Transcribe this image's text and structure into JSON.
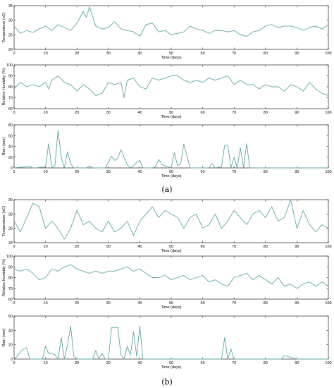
{
  "figure": {
    "series_color": "#5fa5a5",
    "panels": [
      {
        "caption": "(a)",
        "letter": "a"
      },
      {
        "caption": "(b)",
        "letter": "b"
      }
    ]
  },
  "chart_data": [
    {
      "type": "line",
      "panel": "a",
      "xlabel": "Time (days)",
      "ylabel": "Temperature (oC)",
      "xlim": [
        0,
        100
      ],
      "ylim": [
        20,
        35
      ],
      "xticks": [
        0,
        10,
        20,
        30,
        40,
        50,
        60,
        70,
        80,
        90,
        100
      ],
      "yticks": [
        20,
        25,
        30,
        35
      ],
      "x": [
        0,
        2,
        4,
        6,
        8,
        10,
        12,
        14,
        16,
        18,
        20,
        22,
        23,
        24,
        26,
        28,
        30,
        32,
        34,
        36,
        38,
        40,
        42,
        44,
        46,
        48,
        50,
        52,
        54,
        56,
        58,
        60,
        62,
        64,
        66,
        68,
        70,
        72,
        74,
        76,
        78,
        80,
        82,
        84,
        86,
        88,
        90,
        92,
        94,
        96,
        98,
        100
      ],
      "y": [
        28,
        25.5,
        26.5,
        25.8,
        27,
        28,
        26.5,
        28.5,
        27.5,
        26.5,
        29,
        33,
        31,
        34.5,
        28,
        27,
        27.5,
        29.5,
        27,
        26.5,
        26,
        24.5,
        28.5,
        29,
        26,
        26.5,
        25,
        25.5,
        26,
        28,
        27,
        26.5,
        25.5,
        26.5,
        26.5,
        26,
        26.5,
        25,
        24.5,
        26,
        26.5,
        28,
        28.5,
        27.5,
        28,
        28,
        27.5,
        26.5,
        27.5,
        28,
        27,
        28.5
      ]
    },
    {
      "type": "line",
      "panel": "a",
      "xlabel": "Time (days)",
      "ylabel": "Relative Humidity (%)",
      "xlim": [
        0,
        100
      ],
      "ylim": [
        60,
        100
      ],
      "xticks": [
        0,
        10,
        20,
        30,
        40,
        50,
        60,
        70,
        80,
        90,
        100
      ],
      "yticks": [
        60,
        70,
        80,
        90,
        100
      ],
      "x": [
        0,
        2,
        4,
        6,
        8,
        10,
        11,
        12,
        14,
        16,
        18,
        20,
        22,
        24,
        26,
        28,
        30,
        32,
        34,
        35,
        36,
        38,
        40,
        42,
        44,
        46,
        48,
        50,
        52,
        54,
        56,
        58,
        60,
        62,
        64,
        66,
        68,
        70,
        72,
        74,
        76,
        78,
        80,
        82,
        84,
        86,
        88,
        90,
        92,
        94,
        96,
        98,
        100
      ],
      "y": [
        78,
        84,
        80,
        82,
        80,
        84,
        78,
        86,
        90,
        84,
        82,
        76,
        82,
        78,
        72,
        74,
        84,
        82,
        84,
        70,
        86,
        88,
        80,
        78,
        88,
        86,
        88,
        90,
        90,
        86,
        84,
        86,
        84,
        88,
        86,
        88,
        90,
        82,
        86,
        82,
        82,
        78,
        82,
        80,
        80,
        76,
        82,
        80,
        76,
        84,
        78,
        74,
        72
      ]
    },
    {
      "type": "line",
      "panel": "a",
      "xlabel": "Time (days)",
      "ylabel": "Rain (mm)",
      "xlim": [
        0,
        100
      ],
      "ylim": [
        0,
        80
      ],
      "xticks": [
        0,
        10,
        20,
        30,
        40,
        50,
        60,
        70,
        80,
        90,
        100
      ],
      "yticks": [
        0,
        20,
        40,
        60,
        80
      ],
      "x": [
        0,
        5,
        6,
        7,
        10,
        11,
        12,
        13,
        14,
        15,
        16,
        17,
        18,
        19,
        20,
        21,
        22,
        23,
        24,
        25,
        26,
        27,
        28,
        29,
        30,
        31,
        32,
        33,
        34,
        35,
        36,
        37,
        38,
        39,
        40,
        41,
        42,
        43,
        44,
        45,
        46,
        47,
        48,
        49,
        50,
        51,
        52,
        53,
        54,
        56,
        58,
        60,
        62,
        63,
        64,
        66,
        67,
        68,
        69,
        70,
        71,
        72,
        73,
        74,
        75,
        76,
        78,
        80,
        85,
        90,
        95,
        100
      ],
      "y": [
        0,
        3,
        0,
        0,
        2,
        45,
        0,
        5,
        70,
        20,
        0,
        30,
        8,
        0,
        0,
        0,
        0,
        0,
        4,
        0,
        0,
        0,
        0,
        0,
        10,
        22,
        14,
        18,
        34,
        20,
        6,
        0,
        4,
        10,
        14,
        0,
        0,
        0,
        0,
        2,
        16,
        6,
        4,
        2,
        0,
        28,
        4,
        8,
        44,
        0,
        0,
        0,
        0,
        8,
        0,
        2,
        42,
        42,
        0,
        20,
        0,
        37,
        0,
        45,
        0,
        0,
        0,
        0,
        0,
        0,
        0,
        0
      ]
    },
    {
      "type": "line",
      "panel": "b",
      "xlabel": "Time (days)",
      "ylabel": "Temperature (oC)",
      "xlim": [
        0,
        100
      ],
      "ylim": [
        24,
        30
      ],
      "xticks": [
        0,
        10,
        20,
        30,
        40,
        50,
        60,
        70,
        80,
        90,
        100
      ],
      "yticks": [
        24,
        26,
        28,
        30
      ],
      "x": [
        0,
        2,
        4,
        6,
        8,
        10,
        12,
        14,
        16,
        18,
        20,
        22,
        24,
        26,
        28,
        30,
        32,
        34,
        36,
        38,
        40,
        42,
        44,
        46,
        48,
        50,
        52,
        54,
        56,
        58,
        60,
        62,
        64,
        66,
        68,
        70,
        72,
        74,
        76,
        78,
        80,
        82,
        84,
        86,
        88,
        90,
        92,
        94,
        96,
        98,
        100
      ],
      "y": [
        27,
        25.5,
        27.5,
        29.5,
        29,
        26,
        27,
        26,
        24.5,
        26,
        28.5,
        26.5,
        27,
        26,
        25.5,
        27,
        25.5,
        26,
        27,
        25,
        27,
        28,
        29,
        27.5,
        28.5,
        28,
        27.5,
        26,
        27.5,
        28,
        26,
        26.5,
        28,
        26,
        27,
        28.5,
        27.5,
        26.5,
        28,
        28.5,
        27.5,
        29,
        27,
        27.5,
        30,
        26,
        28.5,
        26.5,
        25.5,
        26.5,
        26
      ]
    },
    {
      "type": "line",
      "panel": "b",
      "xlabel": "Time (days)",
      "ylabel": "Relative Humidity (%)",
      "xlim": [
        0,
        100
      ],
      "ylim": [
        60,
        100
      ],
      "xticks": [
        0,
        10,
        20,
        30,
        40,
        50,
        60,
        70,
        80,
        90,
        100
      ],
      "yticks": [
        60,
        70,
        80,
        90,
        100
      ],
      "x": [
        0,
        2,
        4,
        6,
        8,
        10,
        12,
        14,
        16,
        18,
        20,
        22,
        24,
        26,
        28,
        30,
        32,
        34,
        36,
        38,
        40,
        42,
        44,
        46,
        48,
        50,
        52,
        54,
        56,
        58,
        60,
        62,
        64,
        66,
        68,
        70,
        72,
        74,
        76,
        78,
        80,
        82,
        84,
        86,
        88,
        90,
        92,
        94,
        96,
        98,
        100
      ],
      "y": [
        88,
        86,
        88,
        84,
        78,
        80,
        88,
        86,
        90,
        92,
        88,
        86,
        84,
        86,
        84,
        86,
        86,
        88,
        90,
        86,
        88,
        84,
        80,
        80,
        82,
        78,
        80,
        82,
        78,
        80,
        82,
        76,
        78,
        74,
        72,
        80,
        82,
        84,
        78,
        82,
        78,
        74,
        80,
        72,
        74,
        70,
        74,
        76,
        72,
        76,
        72
      ]
    },
    {
      "type": "line",
      "panel": "b",
      "xlabel": "Time (days)",
      "ylabel": "Rain (mm)",
      "xlim": [
        0,
        100
      ],
      "ylim": [
        0,
        60
      ],
      "xticks": [
        0,
        10,
        20,
        30,
        40,
        50,
        60,
        70,
        80,
        90,
        100
      ],
      "yticks": [
        0,
        20,
        40,
        60
      ],
      "x": [
        0,
        1,
        2,
        3,
        4,
        5,
        6,
        7,
        8,
        9,
        10,
        11,
        12,
        13,
        14,
        15,
        16,
        17,
        18,
        19,
        20,
        21,
        22,
        23,
        24,
        25,
        26,
        27,
        28,
        29,
        30,
        31,
        32,
        33,
        34,
        35,
        36,
        37,
        38,
        39,
        40,
        41,
        42,
        50,
        60,
        65,
        66,
        67,
        68,
        69,
        70,
        75,
        84,
        85,
        86,
        90,
        100
      ],
      "y": [
        0,
        4,
        10,
        14,
        16,
        0,
        0,
        0,
        0,
        0,
        18,
        8,
        8,
        6,
        0,
        30,
        0,
        20,
        46,
        4,
        0,
        0,
        0,
        0,
        0,
        0,
        12,
        0,
        8,
        0,
        0,
        44,
        44,
        44,
        6,
        0,
        18,
        6,
        38,
        4,
        46,
        0,
        0,
        0,
        0,
        0,
        0,
        30,
        0,
        14,
        0,
        0,
        0,
        0,
        5,
        0,
        0
      ]
    }
  ]
}
